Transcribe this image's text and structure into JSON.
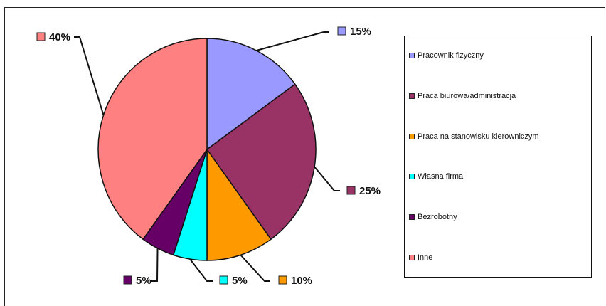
{
  "chart_data": {
    "type": "pie",
    "title": "",
    "legend_placement": "right",
    "slices": [
      {
        "name": "Pracownik fizyczny",
        "value": 15,
        "label": "15%",
        "color": "#9999ff"
      },
      {
        "name": "Praca biurowa/administracja",
        "value": 25,
        "label": "25%",
        "color": "#993366"
      },
      {
        "name": "Praca na stanowisku kierowniczym",
        "value": 10,
        "label": "10%",
        "color": "#ff9900"
      },
      {
        "name": "Własna firma",
        "value": 5,
        "label": "5%",
        "color": "#00ffff"
      },
      {
        "name": "Bezrobotny",
        "value": 5,
        "label": "5%",
        "color": "#660066"
      },
      {
        "name": "Inne",
        "value": 40,
        "label": "40%",
        "color": "#ff8080"
      }
    ]
  }
}
